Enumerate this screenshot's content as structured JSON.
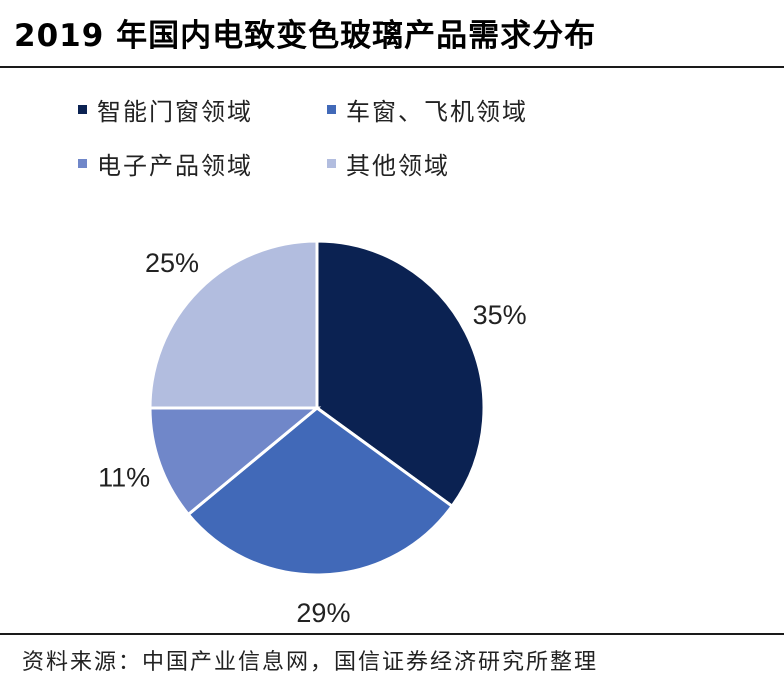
{
  "title": "2019 年国内电致变色玻璃产品需求分布",
  "source": "资料来源：中国产业信息网，国信证券经济研究所整理",
  "chart_data": {
    "type": "pie",
    "title": "2019 年国内电致变色玻璃产品需求分布",
    "legend_position": "top",
    "slices": [
      {
        "label": "智能门窗领域",
        "value": 35,
        "display": "35%",
        "color": "#0b2252"
      },
      {
        "label": "车窗、飞机领域",
        "value": 29,
        "display": "29%",
        "color": "#4169b8"
      },
      {
        "label": "电子产品领域",
        "value": 11,
        "display": "11%",
        "color": "#7087c9"
      },
      {
        "label": "其他领域",
        "value": 25,
        "display": "25%",
        "color": "#b2bddf"
      }
    ]
  }
}
